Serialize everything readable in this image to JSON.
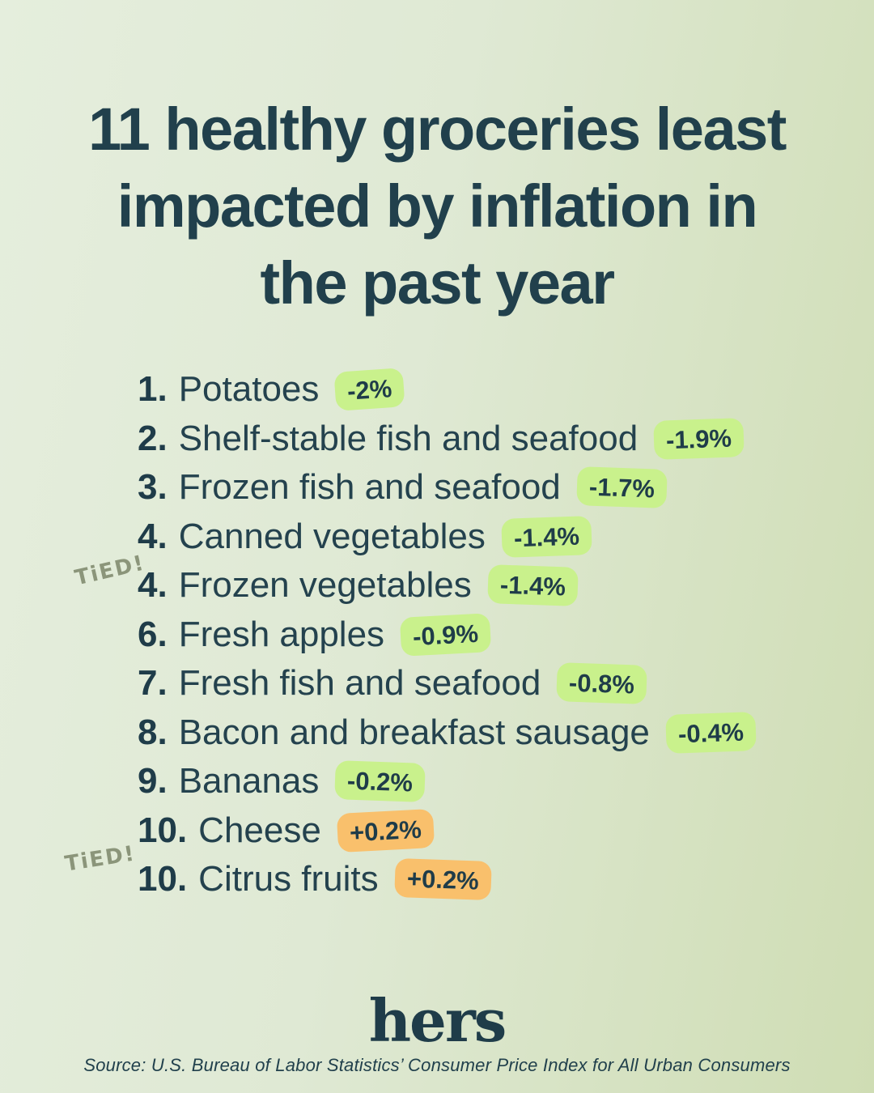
{
  "title_lines": [
    "11 healthy groceries least",
    "impacted by inflation in",
    "the past year"
  ],
  "title": "11 healthy groceries least impacted by inflation in the past year",
  "list": {
    "tied_label": "TiED!",
    "items": [
      {
        "rank": "1.",
        "name": "Potatoes",
        "change": "-2%",
        "badge": "green"
      },
      {
        "rank": "2.",
        "name": "Shelf-stable fish and seafood",
        "change": "-1.9%",
        "badge": "green"
      },
      {
        "rank": "3.",
        "name": "Frozen fish and seafood",
        "change": "-1.7%",
        "badge": "green"
      },
      {
        "rank": "4.",
        "name": "Canned vegetables",
        "change": "-1.4%",
        "badge": "green"
      },
      {
        "rank": "4.",
        "name": "Frozen vegetables",
        "change": "-1.4%",
        "badge": "green"
      },
      {
        "rank": "6.",
        "name": "Fresh apples",
        "change": "-0.9%",
        "badge": "green"
      },
      {
        "rank": "7.",
        "name": "Fresh fish and seafood",
        "change": "-0.8%",
        "badge": "green"
      },
      {
        "rank": "8.",
        "name": "Bacon and breakfast sausage",
        "change": "-0.4%",
        "badge": "green"
      },
      {
        "rank": "9.",
        "name": "Bananas",
        "change": "-0.2%",
        "badge": "green"
      },
      {
        "rank": "10.",
        "name": "Cheese",
        "change": "+0.2%",
        "badge": "orange"
      },
      {
        "rank": "10.",
        "name": "Citrus fruits",
        "change": "+0.2%",
        "badge": "orange"
      }
    ]
  },
  "footer": {
    "logo": "hers",
    "source": "Source: U.S. Bureau of Labor Statistics’ Consumer Price Index for All Urban Consumers"
  },
  "colors": {
    "background_left": "#e5eedd",
    "background_right": "#cfddb4",
    "text": "#21404c",
    "badge_green": "#c9f18c",
    "badge_orange": "#f9c06c",
    "tied_annotation": "#8b957a"
  },
  "chart_data": {
    "type": "table",
    "title": "11 healthy groceries least impacted by inflation in the past year",
    "columns": [
      "rank",
      "item",
      "price_change_pct"
    ],
    "ranks": [
      1,
      2,
      3,
      4,
      4,
      6,
      7,
      8,
      9,
      10,
      10
    ],
    "categories": [
      "Potatoes",
      "Shelf-stable fish and seafood",
      "Frozen fish and seafood",
      "Canned vegetables",
      "Frozen vegetables",
      "Fresh apples",
      "Fresh fish and seafood",
      "Bacon and breakfast sausage",
      "Bananas",
      "Cheese",
      "Citrus fruits"
    ],
    "values": [
      -2.0,
      -1.9,
      -1.7,
      -1.4,
      -1.4,
      -0.9,
      -0.8,
      -0.4,
      -0.2,
      0.2,
      0.2
    ],
    "ties": [
      [
        4,
        5
      ],
      [
        10,
        11
      ]
    ],
    "annotations": [
      "TiED! (ranks 4 and 4)",
      "TiED! (ranks 10 and 10)"
    ],
    "source": "Source: U.S. Bureau of Labor Statistics’ Consumer Price Index for All Urban Consumers",
    "legend": "green badge = price decrease, orange badge = price increase"
  }
}
